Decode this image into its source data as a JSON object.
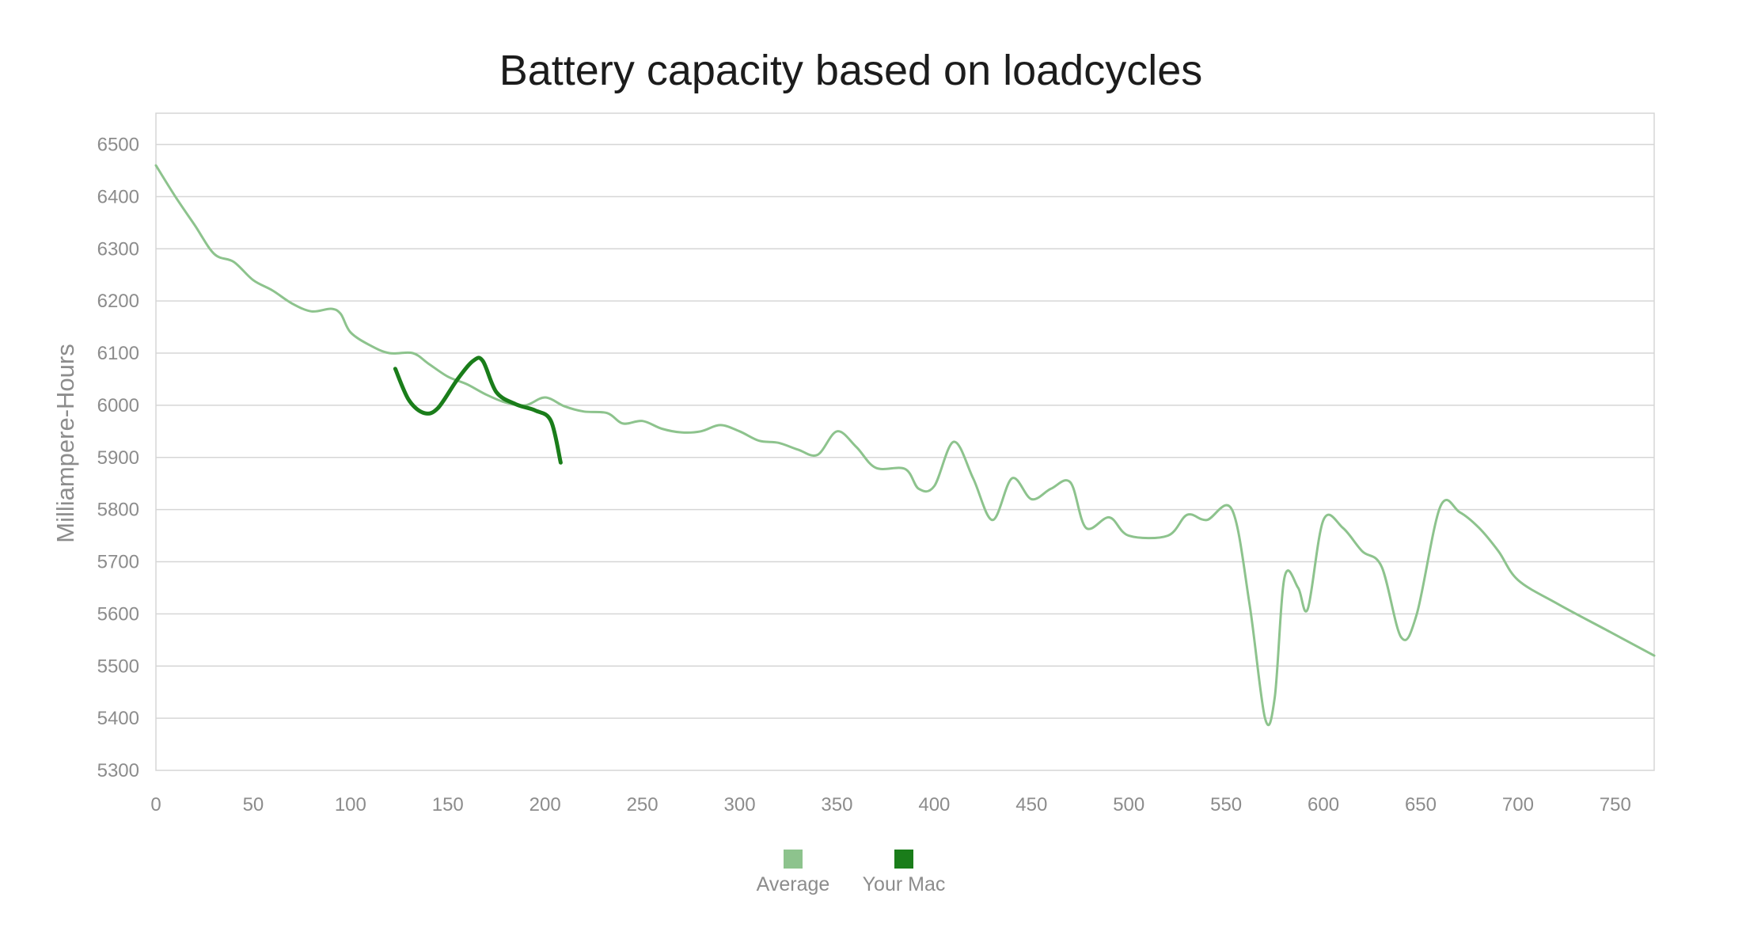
{
  "chart_data": {
    "type": "line",
    "title": "Battery capacity based on loadcycles",
    "xlabel": "",
    "ylabel": "Milliampere-Hours",
    "xlim": [
      0,
      770
    ],
    "ylim": [
      5300,
      6500
    ],
    "x_ticks": [
      0,
      50,
      100,
      150,
      200,
      250,
      300,
      350,
      400,
      450,
      500,
      550,
      600,
      650,
      700,
      750
    ],
    "y_ticks": [
      5300,
      5400,
      5500,
      5600,
      5700,
      5800,
      5900,
      6000,
      6100,
      6200,
      6300,
      6400,
      6500
    ],
    "grid": true,
    "legend_position": "bottom-center",
    "series": [
      {
        "name": "Average",
        "color": "#8dc38d",
        "points": [
          [
            0,
            6460
          ],
          [
            10,
            6400
          ],
          [
            20,
            6345
          ],
          [
            30,
            6290
          ],
          [
            40,
            6275
          ],
          [
            50,
            6240
          ],
          [
            60,
            6220
          ],
          [
            70,
            6195
          ],
          [
            80,
            6180
          ],
          [
            90,
            6185
          ],
          [
            95,
            6175
          ],
          [
            100,
            6140
          ],
          [
            110,
            6115
          ],
          [
            120,
            6100
          ],
          [
            132,
            6100
          ],
          [
            140,
            6080
          ],
          [
            150,
            6055
          ],
          [
            160,
            6040
          ],
          [
            170,
            6020
          ],
          [
            180,
            6005
          ],
          [
            190,
            6000
          ],
          [
            200,
            6015
          ],
          [
            210,
            5998
          ],
          [
            220,
            5988
          ],
          [
            232,
            5985
          ],
          [
            240,
            5965
          ],
          [
            250,
            5970
          ],
          [
            260,
            5955
          ],
          [
            270,
            5948
          ],
          [
            280,
            5950
          ],
          [
            290,
            5962
          ],
          [
            300,
            5950
          ],
          [
            310,
            5932
          ],
          [
            320,
            5928
          ],
          [
            330,
            5915
          ],
          [
            340,
            5905
          ],
          [
            350,
            5950
          ],
          [
            360,
            5920
          ],
          [
            370,
            5880
          ],
          [
            385,
            5878
          ],
          [
            392,
            5840
          ],
          [
            400,
            5845
          ],
          [
            410,
            5930
          ],
          [
            420,
            5860
          ],
          [
            430,
            5780
          ],
          [
            440,
            5860
          ],
          [
            450,
            5820
          ],
          [
            460,
            5840
          ],
          [
            470,
            5852
          ],
          [
            478,
            5765
          ],
          [
            490,
            5785
          ],
          [
            500,
            5750
          ],
          [
            520,
            5750
          ],
          [
            530,
            5790
          ],
          [
            540,
            5780
          ],
          [
            553,
            5800
          ],
          [
            562,
            5620
          ],
          [
            570,
            5400
          ],
          [
            575,
            5440
          ],
          [
            580,
            5670
          ],
          [
            587,
            5650
          ],
          [
            592,
            5610
          ],
          [
            600,
            5780
          ],
          [
            610,
            5765
          ],
          [
            620,
            5720
          ],
          [
            630,
            5690
          ],
          [
            640,
            5555
          ],
          [
            648,
            5600
          ],
          [
            660,
            5805
          ],
          [
            670,
            5795
          ],
          [
            680,
            5765
          ],
          [
            690,
            5720
          ],
          [
            700,
            5665
          ],
          [
            720,
            5620
          ],
          [
            745,
            5570
          ],
          [
            770,
            5520
          ]
        ]
      },
      {
        "name": "Your Mac",
        "color": "#1a7d1a",
        "points": [
          [
            123,
            6070
          ],
          [
            130,
            6010
          ],
          [
            138,
            5985
          ],
          [
            145,
            5995
          ],
          [
            155,
            6050
          ],
          [
            163,
            6085
          ],
          [
            168,
            6085
          ],
          [
            175,
            6025
          ],
          [
            185,
            6002
          ],
          [
            195,
            5990
          ],
          [
            203,
            5970
          ],
          [
            208,
            5890
          ]
        ]
      }
    ]
  }
}
